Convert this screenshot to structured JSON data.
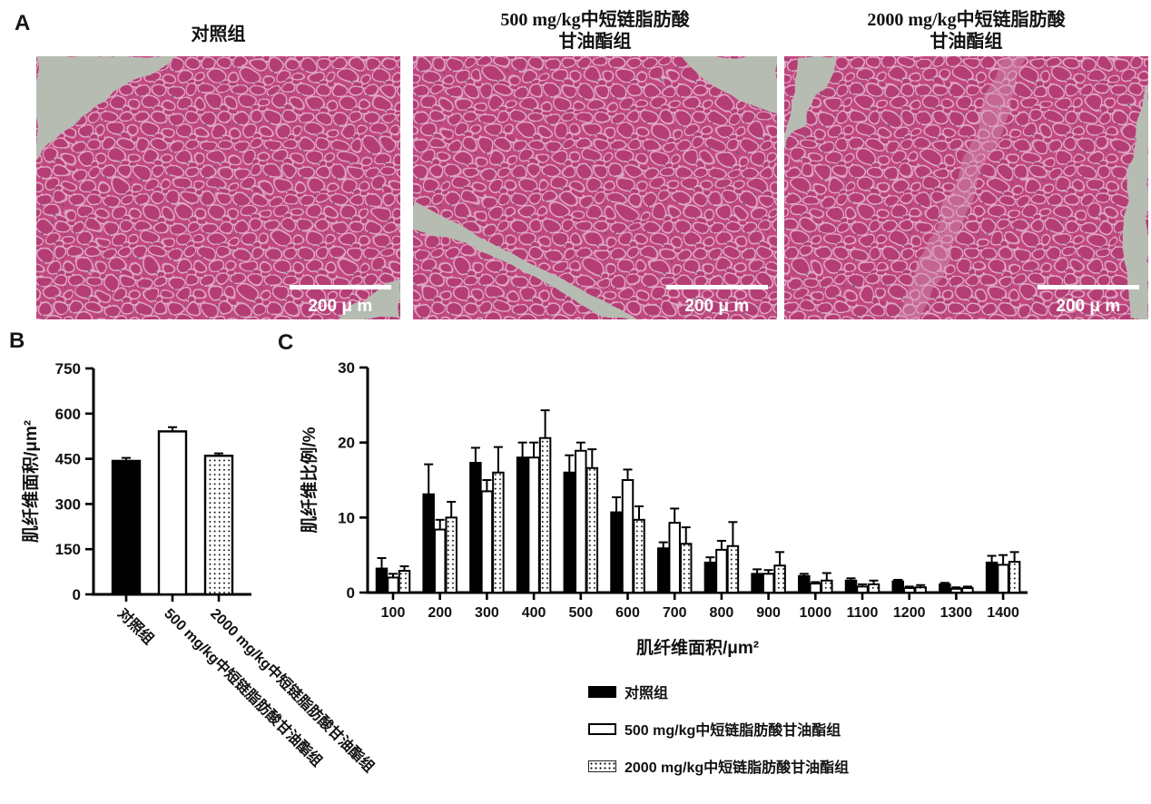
{
  "panel_letters": {
    "a": "A",
    "b": "B",
    "c": "C"
  },
  "panel_a": {
    "titles": [
      {
        "line1": "对照组",
        "line2": ""
      },
      {
        "line1": "500 mg/kg中短链脂肪酸",
        "line2": "甘油酯组"
      },
      {
        "line1": "2000 mg/kg中短链脂肪酸",
        "line2": "甘油酯组"
      }
    ],
    "scale_bar_label": "200 μ m"
  },
  "chart_data": [
    {
      "id": "B",
      "type": "bar",
      "title": "",
      "ylabel": "肌纤维面积/μm²",
      "xlabel": "",
      "ylim": [
        0,
        750
      ],
      "yticks": [
        0,
        150,
        300,
        450,
        600,
        750
      ],
      "grid": false,
      "categories": [
        "对照组",
        "500 mg/kg中短链脂肪酸甘油酯组",
        "2000 mg/kg中短链脂肪酸甘油酯组"
      ],
      "values": [
        443,
        541,
        460
      ],
      "errors": [
        10,
        14,
        8
      ],
      "bar_styles": [
        "solid-black",
        "white",
        "dotted"
      ]
    },
    {
      "id": "C",
      "type": "grouped-bar",
      "title": "",
      "ylabel": "肌纤维比例/%",
      "xlabel": "肌纤维面积/μm²",
      "ylim": [
        0,
        30
      ],
      "yticks": [
        0,
        10,
        20,
        30
      ],
      "grid": false,
      "legend_position": "bottom",
      "categories": [
        "100",
        "200",
        "300",
        "400",
        "500",
        "600",
        "700",
        "800",
        "900",
        "1000",
        "1100",
        "1200",
        "1300",
        "1400"
      ],
      "series": [
        {
          "name": "对照组",
          "style": "solid-black",
          "values": [
            3.2,
            13.1,
            17.3,
            18.0,
            16.0,
            10.7,
            5.9,
            4.0,
            2.5,
            2.2,
            1.6,
            1.5,
            1.1,
            4.0
          ],
          "errors": [
            1.4,
            4.0,
            2.0,
            2.0,
            2.3,
            2.0,
            0.8,
            0.7,
            0.6,
            0.3,
            0.3,
            0.2,
            0.2,
            0.9
          ]
        },
        {
          "name": "500 mg/kg中短链脂肪酸甘油酯组",
          "style": "white",
          "values": [
            2.0,
            8.4,
            13.5,
            18.0,
            18.9,
            15.0,
            9.3,
            5.7,
            2.5,
            1.2,
            0.8,
            0.6,
            0.5,
            3.7
          ],
          "errors": [
            0.5,
            1.3,
            1.5,
            2.0,
            1.1,
            1.4,
            1.9,
            1.2,
            0.5,
            0.2,
            0.3,
            0.2,
            0.2,
            1.3
          ]
        },
        {
          "name": "2000 mg/kg中短链脂肪酸甘油酯组",
          "style": "dotted",
          "values": [
            2.9,
            10.0,
            16.0,
            20.6,
            16.6,
            9.7,
            6.5,
            6.2,
            3.6,
            1.6,
            1.1,
            0.7,
            0.6,
            4.1
          ],
          "errors": [
            0.6,
            2.1,
            3.4,
            3.7,
            2.5,
            1.8,
            2.2,
            3.2,
            1.8,
            1.0,
            0.5,
            0.3,
            0.2,
            1.3
          ]
        }
      ]
    }
  ],
  "colors": {
    "axis": "#000000",
    "bar_fill_black": "#000000",
    "bar_fill_white": "#ffffff",
    "bar_outline": "#000000",
    "micrograph_pink": "#c2477f",
    "micrograph_pink_dark": "#b53e74",
    "micrograph_pink_light": "#d898b8",
    "micrograph_cell_border": "#dfa8c4",
    "micrograph_gray": "#b7bcb2",
    "scale_bar": "#ffffff",
    "background": "#ffffff"
  }
}
